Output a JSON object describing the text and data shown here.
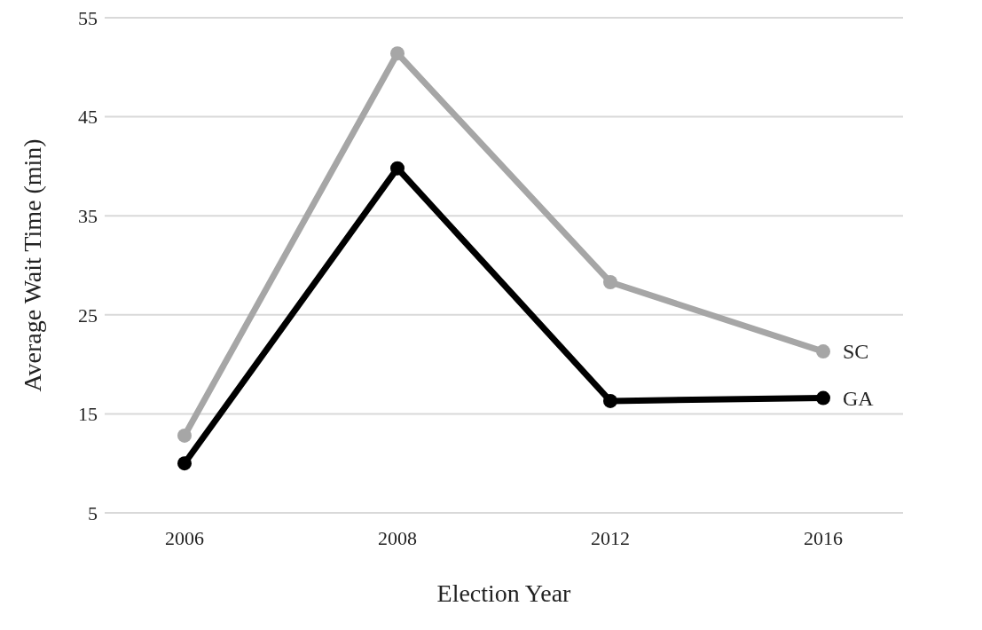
{
  "chart_data": {
    "type": "line",
    "xlabel": "Election Year",
    "ylabel": "Average Wait Time (min)",
    "categories": [
      "2006",
      "2008",
      "2012",
      "2016"
    ],
    "series": [
      {
        "name": "SC",
        "color": "#a6a6a6",
        "values": [
          12.8,
          51.4,
          28.3,
          21.3
        ]
      },
      {
        "name": "GA",
        "color": "#000000",
        "values": [
          10.0,
          39.8,
          16.3,
          16.6
        ]
      }
    ],
    "ylim": [
      5,
      55
    ],
    "yticks": [
      5,
      15,
      25,
      35,
      45,
      55
    ],
    "grid": "y",
    "marker": "circle",
    "line_style": "solid"
  }
}
